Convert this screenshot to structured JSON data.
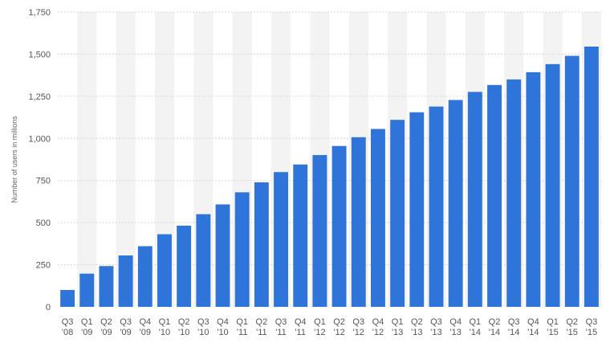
{
  "chart_data": {
    "type": "bar",
    "title": "",
    "xlabel": "",
    "ylabel": "Number of users in millions",
    "ylim": [
      0,
      1750
    ],
    "yticks": [
      0,
      250,
      500,
      750,
      1000,
      1250,
      1500,
      1750
    ],
    "ytick_labels": [
      "0",
      "250",
      "500",
      "750",
      "1,000",
      "1,250",
      "1,500",
      "1,750"
    ],
    "grid": true,
    "legend": "none",
    "colors": {
      "bar": "#2f74d8",
      "grid": "#d6d6d6",
      "stripe": "#f3f3f3"
    },
    "categories": [
      [
        "Q3",
        "'08"
      ],
      [
        "Q1",
        "'09"
      ],
      [
        "Q2",
        "'09"
      ],
      [
        "Q3",
        "'09"
      ],
      [
        "Q4",
        "'09"
      ],
      [
        "Q1",
        "'10"
      ],
      [
        "Q2",
        "'10"
      ],
      [
        "Q3",
        "'10"
      ],
      [
        "Q4",
        "'10"
      ],
      [
        "Q1",
        "'11"
      ],
      [
        "Q2",
        "'11"
      ],
      [
        "Q3",
        "'11"
      ],
      [
        "Q4",
        "'11"
      ],
      [
        "Q1",
        "'12"
      ],
      [
        "Q2",
        "'12"
      ],
      [
        "Q3",
        "'12"
      ],
      [
        "Q4",
        "'12"
      ],
      [
        "Q1",
        "'13"
      ],
      [
        "Q2",
        "'13"
      ],
      [
        "Q3",
        "'13"
      ],
      [
        "Q4",
        "'13"
      ],
      [
        "Q1",
        "'14"
      ],
      [
        "Q2",
        "'14"
      ],
      [
        "Q3",
        "'14"
      ],
      [
        "Q4",
        "'14"
      ],
      [
        "Q1",
        "'15"
      ],
      [
        "Q2",
        "'15"
      ],
      [
        "Q3",
        "'15"
      ]
    ],
    "values": [
      100,
      197,
      242,
      305,
      360,
      431,
      482,
      550,
      608,
      680,
      739,
      800,
      845,
      901,
      955,
      1007,
      1056,
      1110,
      1155,
      1189,
      1228,
      1276,
      1317,
      1350,
      1393,
      1441,
      1490,
      1545
    ]
  }
}
